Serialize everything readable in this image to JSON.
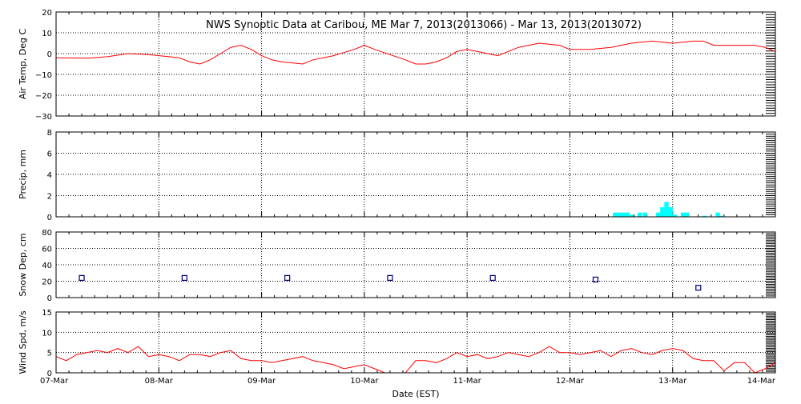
{
  "figure": {
    "title": "NWS Synoptic Data at Caribou, ME   Mar  7, 2013(2013066) - Mar 13, 2013(2013072)",
    "xlabel": "Date (EST)",
    "x_ticks": [
      "07-Mar",
      "08-Mar",
      "09-Mar",
      "10-Mar",
      "11-Mar",
      "12-Mar",
      "13-Mar",
      "14-Mar"
    ]
  },
  "colors": {
    "temp_line": "#ff0000",
    "precip_bar": "#00ffff",
    "snow_marker": "#000080",
    "wind_line": "#ff0000",
    "axes": "#000000",
    "grid": "#000000"
  },
  "chart_data": [
    {
      "type": "line",
      "ylabel": "Air Temp, Deg C",
      "ylim": [
        -30,
        20
      ],
      "y_ticks": [
        "20",
        "10",
        "0",
        "−10",
        "−20",
        "−30"
      ],
      "x_unit": "days since 07-Mar 00:00 EST",
      "x": [
        0,
        0.3,
        0.5,
        0.7,
        0.9,
        1.1,
        1.2,
        1.3,
        1.4,
        1.5,
        1.6,
        1.7,
        1.8,
        1.9,
        2.0,
        2.1,
        2.2,
        2.4,
        2.5,
        2.6,
        2.7,
        2.9,
        3.0,
        3.1,
        3.4,
        3.5,
        3.6,
        3.7,
        3.8,
        3.9,
        4.0,
        4.1,
        4.2,
        4.3,
        4.5,
        4.7,
        4.9,
        5.0,
        5.2,
        5.4,
        5.6,
        5.8,
        6.0,
        6.2,
        6.3,
        6.4,
        6.6,
        6.8,
        6.9,
        7.0
      ],
      "y": [
        -2,
        -2.2,
        -1.5,
        0,
        -0.5,
        -1.5,
        -2,
        -4,
        -5,
        -3,
        0,
        3,
        4,
        2,
        -1,
        -3,
        -4,
        -5,
        -3,
        -2,
        -1,
        2,
        4,
        2,
        -3,
        -5,
        -5,
        -4,
        -2,
        1,
        2,
        1,
        0,
        -1,
        3,
        5,
        4,
        2,
        2,
        3,
        5,
        6,
        5,
        6,
        6,
        4,
        4,
        4,
        3,
        1
      ]
    },
    {
      "type": "bar",
      "ylabel": "Precip, mm",
      "ylim": [
        0,
        8
      ],
      "y_ticks": [
        "8",
        "6",
        "4",
        "2",
        "0"
      ],
      "x_unit": "days since 07-Mar 00:00 EST",
      "bar_width_days": 0.0417,
      "x": [
        5.44,
        5.48,
        5.52,
        5.56,
        5.6,
        5.68,
        5.73,
        5.86,
        5.9,
        5.94,
        5.98,
        6.02,
        6.1,
        6.14,
        6.31,
        6.44,
        6.48
      ],
      "values": [
        0.4,
        0.4,
        0.4,
        0.4,
        0.2,
        0.4,
        0.4,
        0.4,
        0.9,
        1.4,
        0.9,
        0.2,
        0.4,
        0.4,
        0.1,
        0.4,
        0.1
      ]
    },
    {
      "type": "scatter",
      "ylabel": "Snow Dep, cm",
      "ylim": [
        0,
        80
      ],
      "y_ticks": [
        "80",
        "60",
        "40",
        "20",
        "0"
      ],
      "x_unit": "days since 07-Mar 00:00 EST",
      "x": [
        0.25,
        1.25,
        2.25,
        3.25,
        4.25,
        5.25,
        6.25
      ],
      "y": [
        24,
        24,
        24,
        24,
        24,
        22,
        12
      ]
    },
    {
      "type": "line",
      "ylabel": "Wind Spd, m/s",
      "ylim": [
        0,
        15
      ],
      "y_ticks": [
        "15",
        "10",
        "5",
        "0"
      ],
      "x_unit": "days since 07-Mar 00:00 EST",
      "x": [
        0,
        0.1,
        0.2,
        0.3,
        0.4,
        0.5,
        0.6,
        0.7,
        0.8,
        0.9,
        1.0,
        1.1,
        1.2,
        1.3,
        1.4,
        1.5,
        1.6,
        1.7,
        1.8,
        1.9,
        2.0,
        2.1,
        2.2,
        2.3,
        2.4,
        2.5,
        2.6,
        2.7,
        2.8,
        2.9,
        3.0,
        3.1,
        3.2,
        3.3,
        3.4,
        3.5,
        3.6,
        3.7,
        3.8,
        3.9,
        4.0,
        4.1,
        4.2,
        4.3,
        4.4,
        4.5,
        4.6,
        4.7,
        4.8,
        4.9,
        5.0,
        5.1,
        5.2,
        5.3,
        5.4,
        5.5,
        5.6,
        5.7,
        5.8,
        5.9,
        6.0,
        6.1,
        6.2,
        6.3,
        6.4,
        6.5,
        6.6,
        6.7,
        6.8,
        6.9,
        7.0
      ],
      "y": [
        4,
        3,
        4.5,
        5,
        5.5,
        5,
        6,
        5,
        6.5,
        4,
        4.5,
        4,
        3,
        4.5,
        4.5,
        4,
        5,
        5.5,
        3.5,
        3,
        3,
        2.5,
        3,
        3.5,
        4,
        3,
        2.5,
        2,
        1,
        1.5,
        2,
        1,
        0,
        0,
        0,
        3,
        3,
        2.5,
        3.5,
        5,
        4,
        4.5,
        3.5,
        4,
        5,
        4.5,
        4,
        5,
        6.5,
        5,
        5,
        4.5,
        5,
        5.5,
        4,
        5.5,
        6,
        5,
        4.5,
        5.5,
        6,
        5.5,
        3.5,
        3,
        3,
        0.5,
        2.5,
        2.5,
        0,
        1,
        2.5
      ]
    }
  ]
}
